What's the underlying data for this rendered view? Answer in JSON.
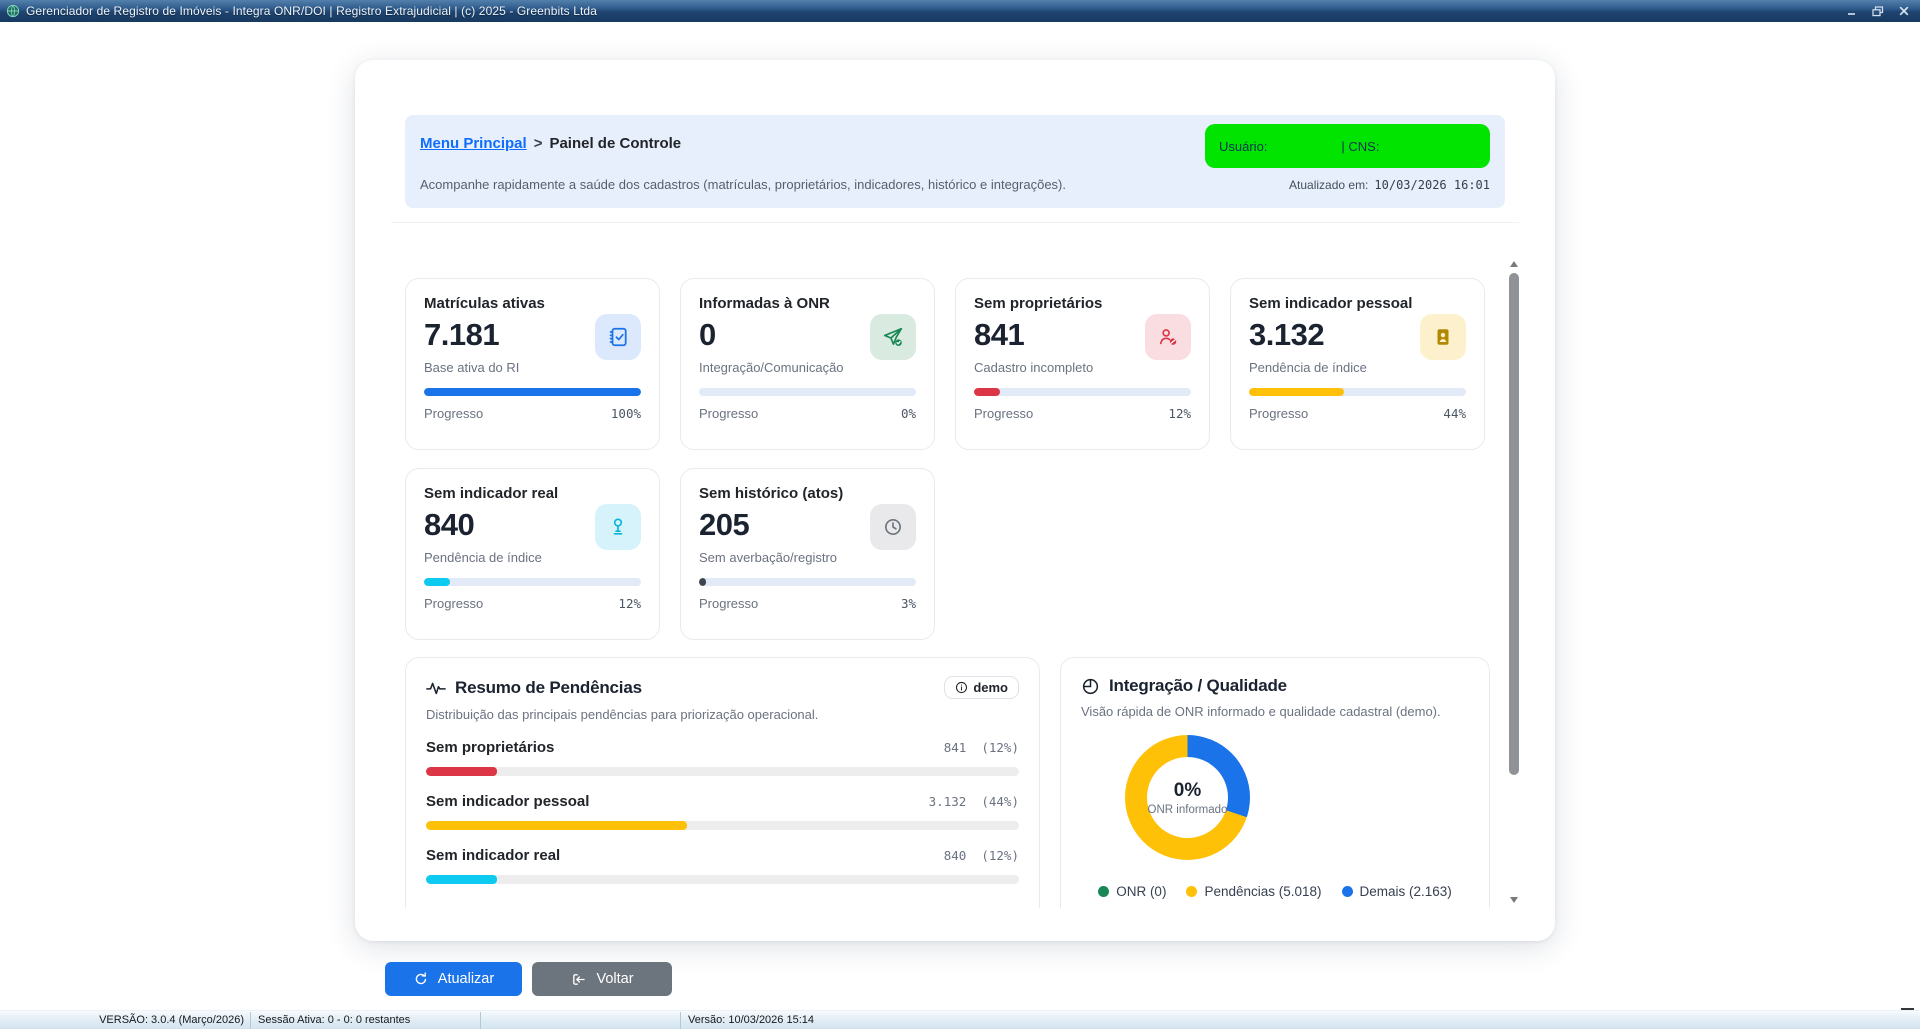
{
  "window": {
    "title": "Gerenciador de Registro de Imóveis - Integra ONR/DOI | Registro Extrajudicial | (c) 2025 - Greenbits Ltda"
  },
  "header": {
    "breadcrumb_link": "Menu Principal",
    "breadcrumb_sep": ">",
    "breadcrumb_current": "Painel de Controle",
    "subtitle": "Acompanhe rapidamente a saúde dos cadastros (matrículas, proprietários, indicadores, histórico e integrações).",
    "user_label": "Usuário:",
    "cns_label": "| CNS:",
    "badge_color": "#00e400",
    "updated_label": "Atualizado em:",
    "updated_value": "10/03/2026 16:01"
  },
  "labels": {
    "progress": "Progresso"
  },
  "cards": [
    {
      "title": "Matrículas ativas",
      "value": "7.181",
      "subtitle": "Base ativa do RI",
      "percent": 100,
      "percent_text": "100%",
      "color": "#1a73e8",
      "icon": "journal-check-icon",
      "icon_bg": "#dce8fc",
      "icon_color": "#1a73e8"
    },
    {
      "title": "Informadas à ONR",
      "value": "0",
      "subtitle": "Integração/Comunicação",
      "percent": 0,
      "percent_text": "0%",
      "color": "#1a73e8",
      "icon": "send-check-icon",
      "icon_bg": "#d9eae0",
      "icon_color": "#198754"
    },
    {
      "title": "Sem proprietários",
      "value": "841",
      "subtitle": "Cadastro incompleto",
      "percent": 12,
      "percent_text": "12%",
      "color": "#dc3545",
      "icon": "person-slash-icon",
      "icon_bg": "#fadde1",
      "icon_color": "#dc3545"
    },
    {
      "title": "Sem indicador pessoal",
      "value": "3.132",
      "subtitle": "Pendência de índice",
      "percent": 44,
      "percent_text": "44%",
      "color": "#ffc107",
      "icon": "person-vcard-icon",
      "icon_bg": "#fdf1cd",
      "icon_color": "#b08900"
    },
    {
      "title": "Sem indicador real",
      "value": "840",
      "subtitle": "Pendência de índice",
      "percent": 12,
      "percent_text": "12%",
      "color": "#0dcaf0",
      "icon": "geo-pin-icon",
      "icon_bg": "#d6f3fb",
      "icon_color": "#0ab5d8"
    },
    {
      "title": "Sem histórico (atos)",
      "value": "205",
      "subtitle": "Sem averbação/registro",
      "percent": 3,
      "percent_text": "3%",
      "color": "#3f474e",
      "icon": "clock-icon",
      "icon_bg": "#e9e9eb",
      "icon_color": "#6c757d"
    }
  ],
  "summary": {
    "title": "Resumo de Pendências",
    "badge_label": "demo",
    "subtitle": "Distribuição das principais pendências para priorização operacional.",
    "rows": [
      {
        "label": "Sem proprietários",
        "value": "841",
        "pct": "(12%)",
        "percent": 12,
        "color": "#dc3545"
      },
      {
        "label": "Sem indicador pessoal",
        "value": "3.132",
        "pct": "(44%)",
        "percent": 44,
        "color": "#ffc107"
      },
      {
        "label": "Sem indicador real",
        "value": "840",
        "pct": "(12%)",
        "percent": 12,
        "color": "#0dcaf0"
      }
    ]
  },
  "quality": {
    "title": "Integração / Qualidade",
    "subtitle": "Visão rápida de ONR informado e qualidade cadastral (demo).",
    "center_value": "0%",
    "center_label": "ONR informado",
    "legend": [
      {
        "label": "ONR (0)",
        "color": "#198754"
      },
      {
        "label": "Pendências (5.018)",
        "color": "#ffc107"
      },
      {
        "label": "Demais (2.163)",
        "color": "#1a73e8"
      }
    ]
  },
  "chart_data": [
    {
      "type": "bar",
      "title": "Resumo de Pendências",
      "categories": [
        "Sem proprietários",
        "Sem indicador pessoal",
        "Sem indicador real"
      ],
      "values": [
        841,
        3132,
        840
      ],
      "percents": [
        12,
        44,
        12
      ],
      "colors": [
        "#dc3545",
        "#ffc107",
        "#0dcaf0"
      ],
      "xlabel": "",
      "ylabel": ""
    },
    {
      "type": "pie",
      "title": "Integração / Qualidade",
      "labels": [
        "ONR",
        "Pendências",
        "Demais"
      ],
      "values": [
        0,
        5018,
        2163
      ],
      "colors": [
        "#198754",
        "#ffc107",
        "#1a73e8"
      ],
      "center_value": "0%",
      "center_label": "ONR informado",
      "legend_position": "bottom"
    }
  ],
  "footer": {
    "refresh_label": "Atualizar",
    "back_label": "Voltar"
  },
  "statusbar": {
    "version": "VERSÃO: 3.0.4 (Março/2026)",
    "session": "Sessão Ativa: 0 - 0: 0 restantes",
    "build": "Versão: 10/03/2026 15:14"
  }
}
